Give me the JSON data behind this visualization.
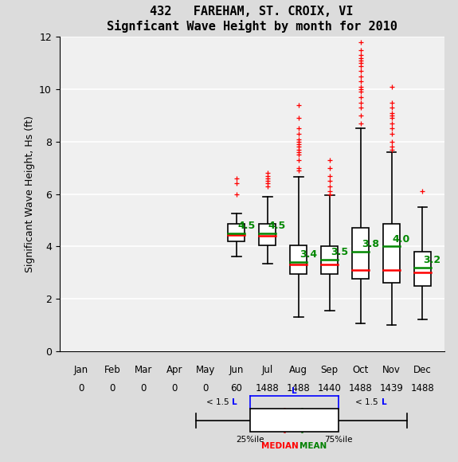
{
  "title1": "432   FAREHAM, ST. CROIX, VI",
  "title2": "Signficant Wave Height by month for 2010",
  "ylabel": "Significant Wave Height, Hs (ft)",
  "xlabel_months": [
    "Jan",
    "Feb",
    "Mar",
    "Apr",
    "May",
    "Jun",
    "Jul",
    "Aug",
    "Sep",
    "Oct",
    "Nov",
    "Dec"
  ],
  "xlabel_counts": [
    0,
    0,
    0,
    0,
    0,
    60,
    1488,
    1488,
    1440,
    1488,
    1439,
    1488
  ],
  "ylim": [
    0,
    12
  ],
  "yticks": [
    0,
    2,
    4,
    6,
    8,
    10,
    12
  ],
  "box_data": {
    "Jun": {
      "q1": 4.2,
      "median": 4.45,
      "q3": 4.85,
      "mean": 4.5,
      "whislo": 3.6,
      "whishi": 5.25,
      "fliers_above": [
        6.0,
        6.4,
        6.6
      ],
      "fliers_below": []
    },
    "Jul": {
      "q1": 4.05,
      "median": 4.4,
      "q3": 4.85,
      "mean": 4.5,
      "whislo": 3.35,
      "whishi": 5.9,
      "fliers_above": [
        6.3,
        6.4,
        6.5,
        6.6,
        6.7,
        6.8
      ],
      "fliers_below": []
    },
    "Aug": {
      "q1": 2.95,
      "median": 3.3,
      "q3": 4.05,
      "mean": 3.4,
      "whislo": 1.3,
      "whishi": 6.65,
      "fliers_above": [
        6.9,
        7.0,
        7.3,
        7.5,
        7.6,
        7.7,
        7.8,
        7.9,
        8.0,
        8.1,
        8.3,
        8.5,
        8.9,
        9.4
      ],
      "fliers_below": []
    },
    "Sep": {
      "q1": 2.95,
      "median": 3.3,
      "q3": 4.0,
      "mean": 3.5,
      "whislo": 1.55,
      "whishi": 5.95,
      "fliers_above": [
        6.0,
        6.1,
        6.3,
        6.5,
        6.7,
        7.0,
        7.3
      ],
      "fliers_below": []
    },
    "Oct": {
      "q1": 2.75,
      "median": 3.1,
      "q3": 4.7,
      "mean": 3.8,
      "whislo": 1.05,
      "whishi": 8.5,
      "fliers_above": [
        8.7,
        9.0,
        9.3,
        9.5,
        9.7,
        9.9,
        10.0,
        10.1,
        10.3,
        10.5,
        10.7,
        10.9,
        11.0,
        11.1,
        11.2,
        11.3,
        11.5,
        11.8
      ],
      "fliers_below": []
    },
    "Nov": {
      "q1": 2.6,
      "median": 3.1,
      "q3": 4.85,
      "mean": 4.0,
      "whislo": 1.0,
      "whishi": 7.6,
      "fliers_above": [
        7.7,
        7.8,
        8.0,
        8.3,
        8.5,
        8.7,
        8.9,
        9.0,
        9.1,
        9.3,
        9.5,
        10.1
      ],
      "fliers_below": []
    },
    "Dec": {
      "q1": 2.5,
      "median": 3.0,
      "q3": 3.8,
      "mean": 3.2,
      "whislo": 1.2,
      "whishi": 5.5,
      "fliers_above": [
        6.1
      ],
      "fliers_below": []
    }
  },
  "box_color": "#ffffff",
  "box_edge_color": "#000000",
  "median_color": "#ff0000",
  "mean_color": "#008800",
  "whisker_color": "#000000",
  "flier_color": "#ff0000",
  "flier_marker": "+",
  "bg_color": "#dcdcdc",
  "plot_bg_color": "#f0f0f0",
  "grid_color": "#ffffff",
  "box_width": 0.55
}
